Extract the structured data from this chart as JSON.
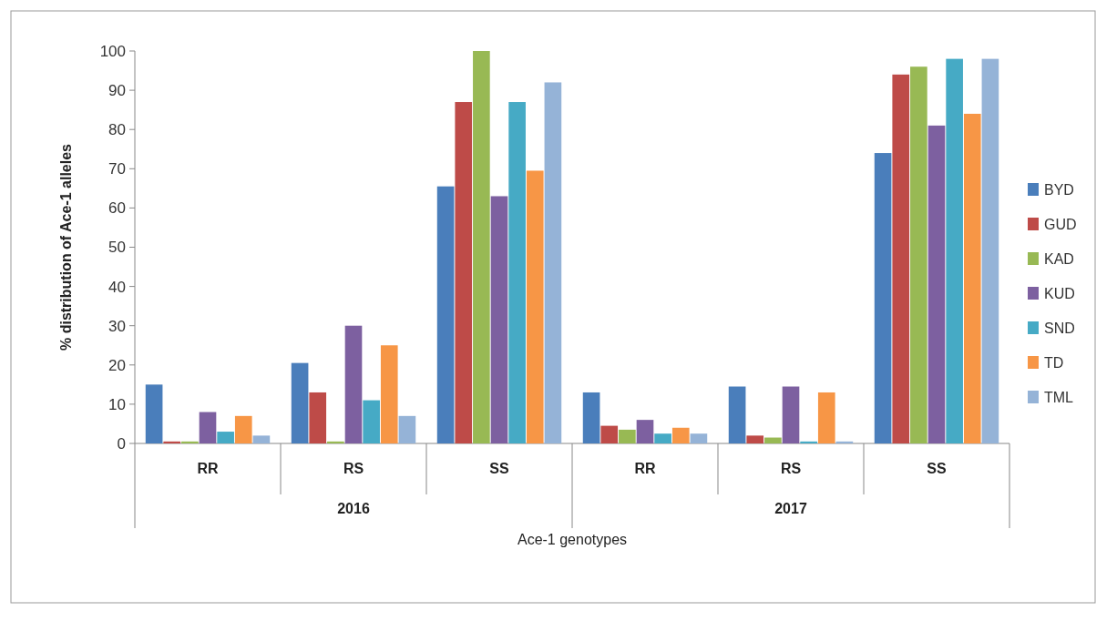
{
  "chart_data": {
    "type": "bar",
    "xlabel": "Ace-1 genotypes",
    "ylabel": "% distribution of Ace-1 alleles",
    "categories": [
      "RR",
      "RS",
      "SS",
      "RR",
      "RS",
      "SS"
    ],
    "annotations": [
      "2016",
      "2017"
    ],
    "ylim": [
      0,
      100
    ],
    "yticks": [
      0,
      10,
      20,
      30,
      40,
      50,
      60,
      70,
      80,
      90,
      100
    ],
    "grid": false,
    "legend": "right",
    "series": [
      {
        "name": "BYD",
        "color": "#4a7ebb",
        "values": [
          15,
          20.5,
          65.5,
          13,
          14.5,
          74
        ]
      },
      {
        "name": "GUD",
        "color": "#be4b48",
        "values": [
          0.5,
          13,
          87,
          4.5,
          2,
          94
        ]
      },
      {
        "name": "KAD",
        "color": "#98b954",
        "values": [
          0.5,
          0.5,
          100,
          3.5,
          1.5,
          96
        ]
      },
      {
        "name": "KUD",
        "color": "#7d60a0",
        "values": [
          8,
          30,
          63,
          6,
          14.5,
          81
        ]
      },
      {
        "name": "SND",
        "color": "#46aac5",
        "values": [
          3,
          11,
          87,
          2.5,
          0.5,
          98
        ]
      },
      {
        "name": "TD",
        "color": "#f79646",
        "values": [
          7,
          25,
          69.5,
          4,
          13,
          84
        ]
      },
      {
        "name": "TML",
        "color": "#95b3d7",
        "values": [
          2,
          7,
          92,
          2.5,
          0.5,
          98
        ]
      }
    ]
  }
}
